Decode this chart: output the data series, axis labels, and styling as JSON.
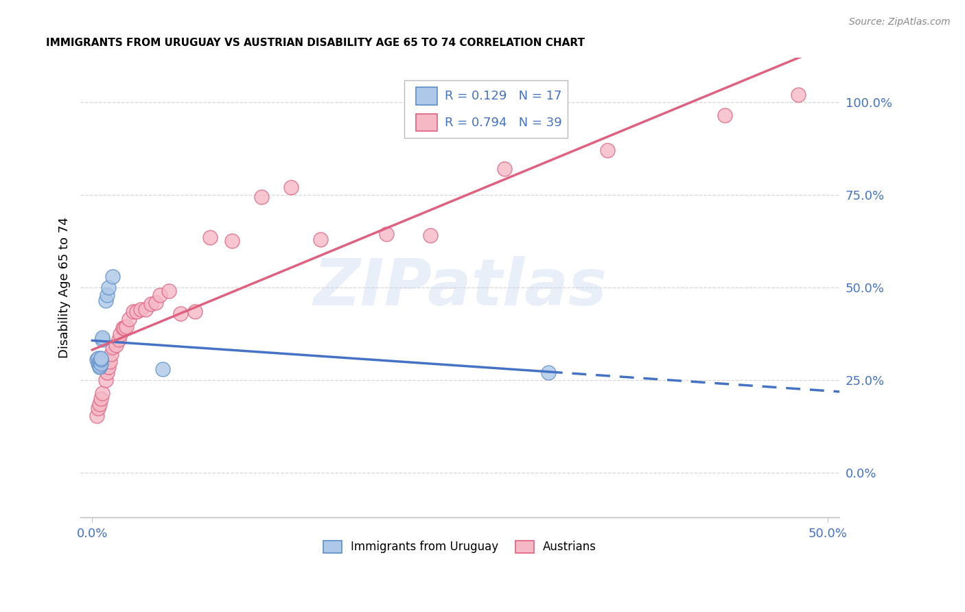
{
  "title": "IMMIGRANTS FROM URUGUAY VS AUSTRIAN DISABILITY AGE 65 TO 74 CORRELATION CHART",
  "source": "Source: ZipAtlas.com",
  "ylabel": "Disability Age 65 to 74",
  "ytick_labels": [
    "0.0%",
    "25.0%",
    "50.0%",
    "75.0%",
    "100.0%"
  ],
  "ytick_vals": [
    0.0,
    0.25,
    0.5,
    0.75,
    1.0
  ],
  "xtick_labels": [
    "0.0%",
    "50.0%"
  ],
  "xtick_vals": [
    0.0,
    0.5
  ],
  "xlim": [
    -0.008,
    0.508
  ],
  "ylim": [
    -0.12,
    1.12
  ],
  "legend_label1": "Immigrants from Uruguay",
  "legend_label2": "Austrians",
  "R1": "0.129",
  "N1": "17",
  "R2": "0.794",
  "N2": "39",
  "color_uruguay_fill": "#adc8e8",
  "color_uruguay_edge": "#5b8dc8",
  "color_austria_fill": "#f5b8c5",
  "color_austria_edge": "#e06080",
  "color_line_uruguay": "#4472c4",
  "color_line_austria": "#e06080",
  "color_label": "#4472c4",
  "watermark_text": "ZIPatlas",
  "grid_color": "#cccccc",
  "uruguay_x": [
    0.003,
    0.004,
    0.004,
    0.005,
    0.005,
    0.005,
    0.006,
    0.006,
    0.006,
    0.007,
    0.007,
    0.009,
    0.01,
    0.011,
    0.014,
    0.048,
    0.31
  ],
  "uruguay_y": [
    0.305,
    0.295,
    0.31,
    0.285,
    0.29,
    0.3,
    0.295,
    0.305,
    0.31,
    0.36,
    0.365,
    0.465,
    0.48,
    0.5,
    0.53,
    0.28,
    0.27
  ],
  "austria_x": [
    0.003,
    0.004,
    0.005,
    0.006,
    0.007,
    0.009,
    0.01,
    0.011,
    0.012,
    0.013,
    0.014,
    0.016,
    0.018,
    0.019,
    0.021,
    0.022,
    0.023,
    0.025,
    0.028,
    0.03,
    0.033,
    0.036,
    0.04,
    0.043,
    0.046,
    0.052,
    0.06,
    0.07,
    0.08,
    0.095,
    0.115,
    0.135,
    0.155,
    0.2,
    0.23,
    0.28,
    0.35,
    0.43,
    0.48
  ],
  "austria_y": [
    0.155,
    0.175,
    0.185,
    0.2,
    0.215,
    0.25,
    0.27,
    0.285,
    0.3,
    0.32,
    0.34,
    0.345,
    0.36,
    0.375,
    0.39,
    0.39,
    0.395,
    0.415,
    0.435,
    0.435,
    0.44,
    0.44,
    0.455,
    0.46,
    0.48,
    0.49,
    0.43,
    0.435,
    0.635,
    0.625,
    0.745,
    0.77,
    0.63,
    0.645,
    0.64,
    0.82,
    0.87,
    0.965,
    1.02
  ]
}
